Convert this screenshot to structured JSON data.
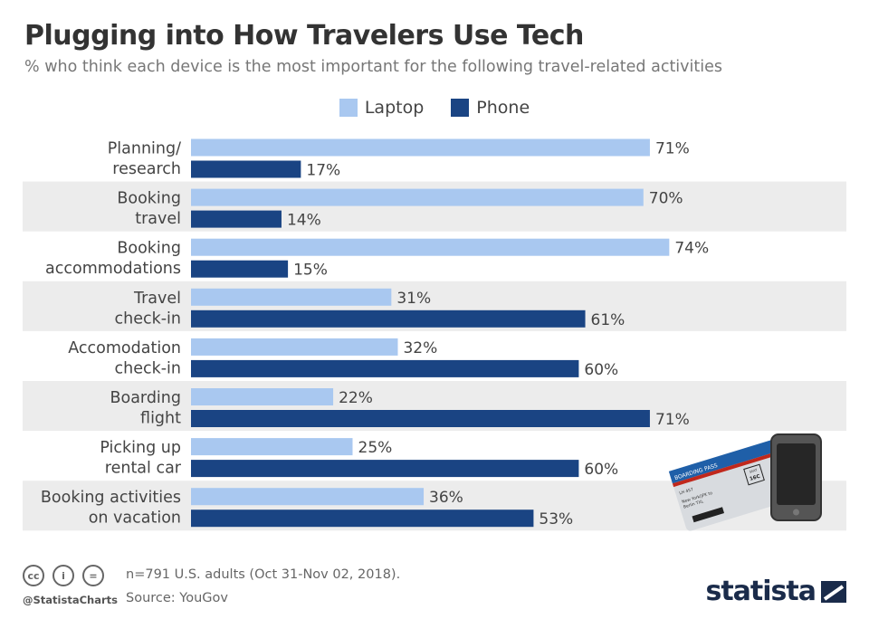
{
  "title": "Plugging into How Travelers Use Tech",
  "subtitle": "% who think each device is the most important for the following travel-related activities",
  "chart_data": {
    "type": "bar",
    "orientation": "horizontal",
    "title": "Plugging into How Travelers Use Tech",
    "subtitle": "% who think each device is the most important for the following travel-related activities",
    "categories": [
      [
        "Planning/",
        "research"
      ],
      [
        "Booking",
        "travel"
      ],
      [
        "Booking",
        "accommodations"
      ],
      [
        "Travel",
        "check-in"
      ],
      [
        "Accomodation",
        "check-in"
      ],
      [
        "Boarding",
        "flight"
      ],
      [
        "Picking up",
        "rental car"
      ],
      [
        "Booking activities",
        "on vacation"
      ]
    ],
    "series": [
      {
        "name": "Laptop",
        "color": "#a9c8f0",
        "values": [
          71,
          70,
          74,
          31,
          32,
          22,
          25,
          36
        ]
      },
      {
        "name": "Phone",
        "color": "#1a4483",
        "values": [
          17,
          14,
          15,
          61,
          60,
          71,
          60,
          53
        ]
      }
    ],
    "value_suffix": "%",
    "xlim": [
      0,
      100
    ],
    "legend_position": "top-center",
    "band_color": "#ececec"
  },
  "illustration": {
    "pass_header": "BOARDING PASS",
    "flight": "LH 457",
    "route_1": "New York/JFK to",
    "route_2": "Berlin TXL",
    "seat_label": "SEAT",
    "seat": "16C"
  },
  "footer": {
    "note": "n=791 U.S. adults (Oct 31-Nov 02, 2018).",
    "source": "Source: YouGov",
    "handle": "@StatistaCharts",
    "brand": "statista",
    "cc_labels": [
      "cc",
      "i",
      "="
    ]
  }
}
